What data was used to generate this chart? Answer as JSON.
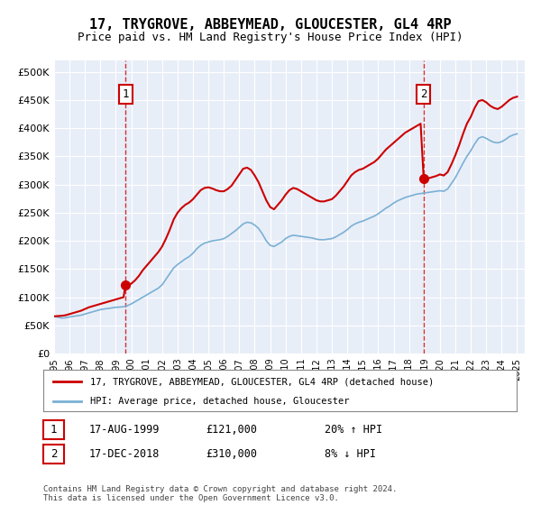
{
  "title": "17, TRYGROVE, ABBEYMEAD, GLOUCESTER, GL4 4RP",
  "subtitle": "Price paid vs. HM Land Registry's House Price Index (HPI)",
  "plot_bg_color": "#e8eef8",
  "yticks": [
    0,
    50000,
    100000,
    150000,
    200000,
    250000,
    300000,
    350000,
    400000,
    450000,
    500000
  ],
  "ylim": [
    0,
    520000
  ],
  "xlim_start": 1995.0,
  "xlim_end": 2025.5,
  "legend_line1": "17, TRYGROVE, ABBEYMEAD, GLOUCESTER, GL4 4RP (detached house)",
  "legend_line2": "HPI: Average price, detached house, Gloucester",
  "sale1_date": "17-AUG-1999",
  "sale1_price": "£121,000",
  "sale1_hpi": "20% ↑ HPI",
  "sale1_x": 1999.62,
  "sale1_y": 121000,
  "sale2_date": "17-DEC-2018",
  "sale2_price": "£310,000",
  "sale2_hpi": "8% ↓ HPI",
  "sale2_x": 2018.95,
  "sale2_y": 310000,
  "footer": "Contains HM Land Registry data © Crown copyright and database right 2024.\nThis data is licensed under the Open Government Licence v3.0.",
  "red_color": "#cc0000",
  "blue_color": "#7ab0d4",
  "hpi_data": [
    [
      1995.0,
      66000
    ],
    [
      1995.25,
      64500
    ],
    [
      1995.5,
      63000
    ],
    [
      1995.75,
      63500
    ],
    [
      1996.0,
      65000
    ],
    [
      1996.25,
      66000
    ],
    [
      1996.5,
      67000
    ],
    [
      1996.75,
      68000
    ],
    [
      1997.0,
      70000
    ],
    [
      1997.25,
      72000
    ],
    [
      1997.5,
      74000
    ],
    [
      1997.75,
      76000
    ],
    [
      1998.0,
      78000
    ],
    [
      1998.25,
      79000
    ],
    [
      1998.5,
      80000
    ],
    [
      1998.75,
      81000
    ],
    [
      1999.0,
      82000
    ],
    [
      1999.25,
      82500
    ],
    [
      1999.5,
      83000
    ],
    [
      1999.75,
      85000
    ],
    [
      2000.0,
      88000
    ],
    [
      2000.25,
      92000
    ],
    [
      2000.5,
      96000
    ],
    [
      2000.75,
      100000
    ],
    [
      2001.0,
      104000
    ],
    [
      2001.25,
      108000
    ],
    [
      2001.5,
      112000
    ],
    [
      2001.75,
      116000
    ],
    [
      2002.0,
      122000
    ],
    [
      2002.25,
      132000
    ],
    [
      2002.5,
      142000
    ],
    [
      2002.75,
      152000
    ],
    [
      2003.0,
      158000
    ],
    [
      2003.25,
      163000
    ],
    [
      2003.5,
      168000
    ],
    [
      2003.75,
      172000
    ],
    [
      2004.0,
      178000
    ],
    [
      2004.25,
      186000
    ],
    [
      2004.5,
      192000
    ],
    [
      2004.75,
      196000
    ],
    [
      2005.0,
      198000
    ],
    [
      2005.25,
      200000
    ],
    [
      2005.5,
      201000
    ],
    [
      2005.75,
      202000
    ],
    [
      2006.0,
      204000
    ],
    [
      2006.25,
      208000
    ],
    [
      2006.5,
      213000
    ],
    [
      2006.75,
      218000
    ],
    [
      2007.0,
      224000
    ],
    [
      2007.25,
      230000
    ],
    [
      2007.5,
      233000
    ],
    [
      2007.75,
      232000
    ],
    [
      2008.0,
      228000
    ],
    [
      2008.25,
      222000
    ],
    [
      2008.5,
      212000
    ],
    [
      2008.75,
      200000
    ],
    [
      2009.0,
      192000
    ],
    [
      2009.25,
      190000
    ],
    [
      2009.5,
      194000
    ],
    [
      2009.75,
      198000
    ],
    [
      2010.0,
      204000
    ],
    [
      2010.25,
      208000
    ],
    [
      2010.5,
      210000
    ],
    [
      2010.75,
      209000
    ],
    [
      2011.0,
      208000
    ],
    [
      2011.25,
      207000
    ],
    [
      2011.5,
      206000
    ],
    [
      2011.75,
      205000
    ],
    [
      2012.0,
      203000
    ],
    [
      2012.25,
      202000
    ],
    [
      2012.5,
      202000
    ],
    [
      2012.75,
      203000
    ],
    [
      2013.0,
      204000
    ],
    [
      2013.25,
      207000
    ],
    [
      2013.5,
      211000
    ],
    [
      2013.75,
      215000
    ],
    [
      2014.0,
      220000
    ],
    [
      2014.25,
      226000
    ],
    [
      2014.5,
      230000
    ],
    [
      2014.75,
      233000
    ],
    [
      2015.0,
      235000
    ],
    [
      2015.25,
      238000
    ],
    [
      2015.5,
      241000
    ],
    [
      2015.75,
      244000
    ],
    [
      2016.0,
      248000
    ],
    [
      2016.25,
      253000
    ],
    [
      2016.5,
      258000
    ],
    [
      2016.75,
      262000
    ],
    [
      2017.0,
      267000
    ],
    [
      2017.25,
      271000
    ],
    [
      2017.5,
      274000
    ],
    [
      2017.75,
      277000
    ],
    [
      2018.0,
      279000
    ],
    [
      2018.25,
      281000
    ],
    [
      2018.5,
      283000
    ],
    [
      2018.75,
      284000
    ],
    [
      2019.0,
      285000
    ],
    [
      2019.25,
      286000
    ],
    [
      2019.5,
      287000
    ],
    [
      2019.75,
      288000
    ],
    [
      2020.0,
      289000
    ],
    [
      2020.25,
      288000
    ],
    [
      2020.5,
      292000
    ],
    [
      2020.75,
      302000
    ],
    [
      2021.0,
      312000
    ],
    [
      2021.25,
      325000
    ],
    [
      2021.5,
      338000
    ],
    [
      2021.75,
      350000
    ],
    [
      2022.0,
      360000
    ],
    [
      2022.25,
      372000
    ],
    [
      2022.5,
      382000
    ],
    [
      2022.75,
      385000
    ],
    [
      2023.0,
      382000
    ],
    [
      2023.25,
      378000
    ],
    [
      2023.5,
      375000
    ],
    [
      2023.75,
      374000
    ],
    [
      2024.0,
      376000
    ],
    [
      2024.25,
      380000
    ],
    [
      2024.5,
      385000
    ],
    [
      2024.75,
      388000
    ],
    [
      2025.0,
      390000
    ]
  ],
  "price_data": [
    [
      1995.0,
      66000
    ],
    [
      1995.25,
      66500
    ],
    [
      1995.5,
      67000
    ],
    [
      1995.75,
      68000
    ],
    [
      1996.0,
      70000
    ],
    [
      1996.25,
      72000
    ],
    [
      1996.5,
      74000
    ],
    [
      1996.75,
      76000
    ],
    [
      1997.0,
      79000
    ],
    [
      1997.25,
      82000
    ],
    [
      1997.5,
      84000
    ],
    [
      1997.75,
      86000
    ],
    [
      1998.0,
      88000
    ],
    [
      1998.25,
      90000
    ],
    [
      1998.5,
      92000
    ],
    [
      1998.75,
      94000
    ],
    [
      1999.0,
      96000
    ],
    [
      1999.25,
      98000
    ],
    [
      1999.5,
      100000
    ],
    [
      1999.62,
      121000
    ],
    [
      1999.75,
      121000
    ],
    [
      2000.0,
      124000
    ],
    [
      2000.25,
      130000
    ],
    [
      2000.5,
      138000
    ],
    [
      2000.75,
      148000
    ],
    [
      2001.0,
      156000
    ],
    [
      2001.25,
      164000
    ],
    [
      2001.5,
      172000
    ],
    [
      2001.75,
      180000
    ],
    [
      2002.0,
      190000
    ],
    [
      2002.25,
      204000
    ],
    [
      2002.5,
      220000
    ],
    [
      2002.75,
      238000
    ],
    [
      2003.0,
      250000
    ],
    [
      2003.25,
      258000
    ],
    [
      2003.5,
      264000
    ],
    [
      2003.75,
      268000
    ],
    [
      2004.0,
      274000
    ],
    [
      2004.25,
      282000
    ],
    [
      2004.5,
      290000
    ],
    [
      2004.75,
      294000
    ],
    [
      2005.0,
      295000
    ],
    [
      2005.25,
      293000
    ],
    [
      2005.5,
      290000
    ],
    [
      2005.75,
      288000
    ],
    [
      2006.0,
      288000
    ],
    [
      2006.25,
      292000
    ],
    [
      2006.5,
      298000
    ],
    [
      2006.75,
      308000
    ],
    [
      2007.0,
      318000
    ],
    [
      2007.25,
      328000
    ],
    [
      2007.5,
      330000
    ],
    [
      2007.75,
      326000
    ],
    [
      2008.0,
      316000
    ],
    [
      2008.25,
      304000
    ],
    [
      2008.5,
      288000
    ],
    [
      2008.75,
      272000
    ],
    [
      2009.0,
      260000
    ],
    [
      2009.25,
      256000
    ],
    [
      2009.5,
      264000
    ],
    [
      2009.75,
      272000
    ],
    [
      2010.0,
      282000
    ],
    [
      2010.25,
      290000
    ],
    [
      2010.5,
      294000
    ],
    [
      2010.75,
      292000
    ],
    [
      2011.0,
      288000
    ],
    [
      2011.25,
      284000
    ],
    [
      2011.5,
      280000
    ],
    [
      2011.75,
      276000
    ],
    [
      2012.0,
      272000
    ],
    [
      2012.25,
      270000
    ],
    [
      2012.5,
      270000
    ],
    [
      2012.75,
      272000
    ],
    [
      2013.0,
      274000
    ],
    [
      2013.25,
      280000
    ],
    [
      2013.5,
      288000
    ],
    [
      2013.75,
      296000
    ],
    [
      2014.0,
      306000
    ],
    [
      2014.25,
      316000
    ],
    [
      2014.5,
      322000
    ],
    [
      2014.75,
      326000
    ],
    [
      2015.0,
      328000
    ],
    [
      2015.25,
      332000
    ],
    [
      2015.5,
      336000
    ],
    [
      2015.75,
      340000
    ],
    [
      2016.0,
      346000
    ],
    [
      2016.25,
      354000
    ],
    [
      2016.5,
      362000
    ],
    [
      2016.75,
      368000
    ],
    [
      2017.0,
      374000
    ],
    [
      2017.25,
      380000
    ],
    [
      2017.5,
      386000
    ],
    [
      2017.75,
      392000
    ],
    [
      2018.0,
      396000
    ],
    [
      2018.25,
      400000
    ],
    [
      2018.5,
      404000
    ],
    [
      2018.75,
      408000
    ],
    [
      2018.95,
      310000
    ],
    [
      2019.0,
      310000
    ],
    [
      2019.25,
      311000
    ],
    [
      2019.5,
      313000
    ],
    [
      2019.75,
      315000
    ],
    [
      2020.0,
      318000
    ],
    [
      2020.25,
      316000
    ],
    [
      2020.5,
      322000
    ],
    [
      2020.75,
      336000
    ],
    [
      2021.0,
      352000
    ],
    [
      2021.25,
      370000
    ],
    [
      2021.5,
      390000
    ],
    [
      2021.75,
      408000
    ],
    [
      2022.0,
      420000
    ],
    [
      2022.25,
      436000
    ],
    [
      2022.5,
      448000
    ],
    [
      2022.75,
      450000
    ],
    [
      2023.0,
      446000
    ],
    [
      2023.25,
      440000
    ],
    [
      2023.5,
      436000
    ],
    [
      2023.75,
      434000
    ],
    [
      2024.0,
      438000
    ],
    [
      2024.25,
      444000
    ],
    [
      2024.5,
      450000
    ],
    [
      2024.75,
      454000
    ],
    [
      2025.0,
      456000
    ]
  ]
}
